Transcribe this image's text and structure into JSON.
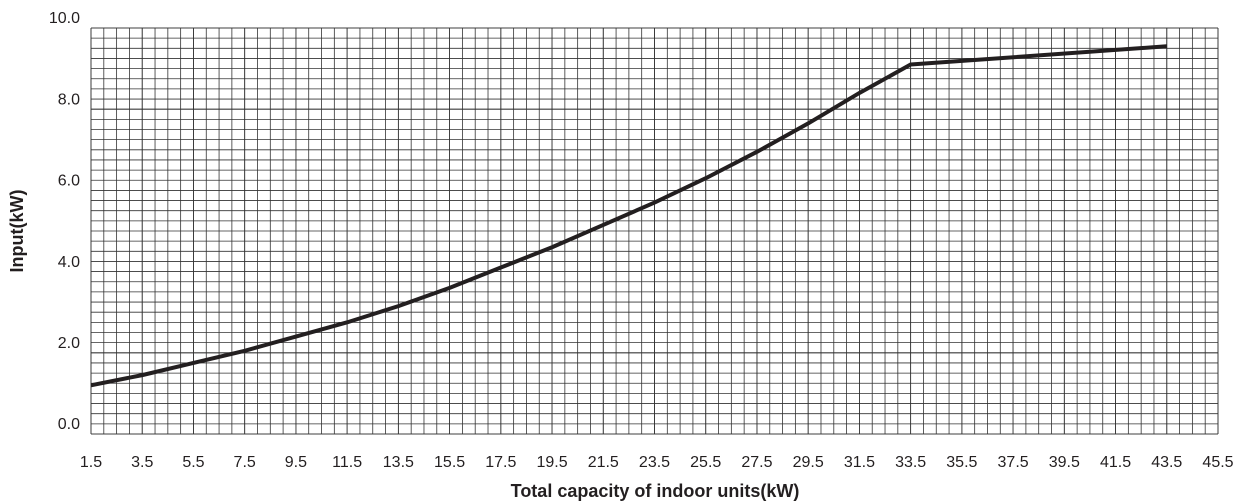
{
  "chart_data": {
    "type": "line",
    "xlabel": "Total capacity of indoor units(kW)",
    "ylabel": "Input(kW)",
    "x": [
      1.5,
      3.5,
      5.5,
      7.5,
      9.5,
      11.5,
      13.5,
      15.5,
      17.5,
      19.5,
      21.5,
      23.5,
      25.5,
      27.5,
      29.5,
      31.5,
      33.5,
      43.5
    ],
    "series": [
      {
        "name": "Input",
        "color": "#231f20",
        "values": [
          1.2,
          1.45,
          1.75,
          2.05,
          2.4,
          2.75,
          3.15,
          3.6,
          4.1,
          4.6,
          5.15,
          5.7,
          6.3,
          6.95,
          7.65,
          8.4,
          9.1,
          9.55
        ]
      }
    ],
    "xlim": [
      1.5,
      45.5
    ],
    "xticks": [
      1.5,
      3.5,
      5.5,
      7.5,
      9.5,
      11.5,
      13.5,
      15.5,
      17.5,
      19.5,
      21.5,
      23.5,
      25.5,
      27.5,
      29.5,
      31.5,
      33.5,
      35.5,
      37.5,
      39.5,
      41.5,
      43.5,
      45.5
    ],
    "ylim": [
      0,
      10
    ],
    "yticks": [
      {
        "value": 0,
        "label": "0.0"
      },
      {
        "value": 2,
        "label": "2.0"
      },
      {
        "value": 4,
        "label": "4.0"
      },
      {
        "value": 6,
        "label": "6.0"
      },
      {
        "value": 8,
        "label": "8.0"
      },
      {
        "value": 10,
        "label": "10.0"
      }
    ],
    "grid": true,
    "xgrid_step": 0.5,
    "ygrid_step": 0.25
  }
}
